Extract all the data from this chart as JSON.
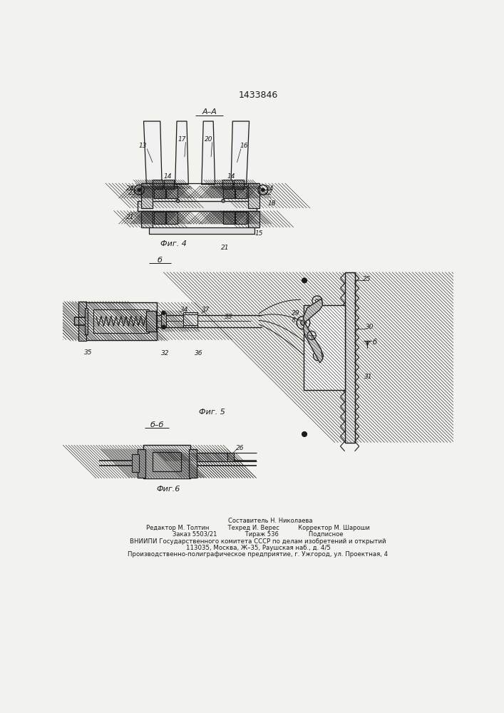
{
  "patent_number": "1433846",
  "bg": "#f2f2ee",
  "lc": "#1a1a1a",
  "footer_lines": [
    "Составитель Н. Николаева",
    "Редактор М. Толтин          Техред И. Верес          Корректор М. Шароши",
    "Заказ 5503/21               Тираж 536                Подписное",
    "ВНИИПИ Государственного комитета СССР по делам изобретений и открытий",
    "113035, Москва, Ж–35, Раушская наб., д. 4/5",
    "Производственно-полиграфическое предприятие, г. Ужгород, ул. Проектная, 4"
  ],
  "hatch_color": "#555555"
}
